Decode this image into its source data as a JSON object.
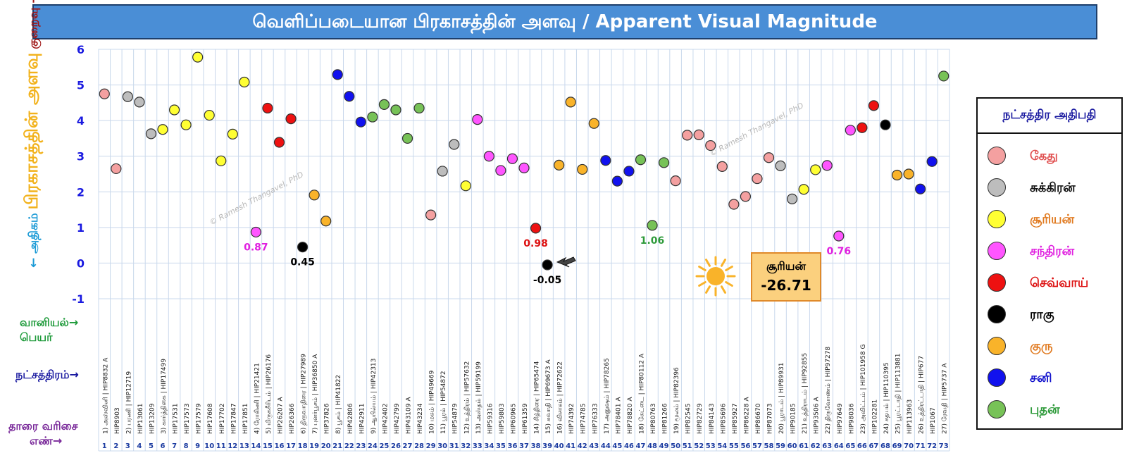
{
  "title": "வெளிப்படையான பிரகாசத்தின் அளவு / Apparent Visual Magnitude",
  "yaxis_parts": {
    "main": "பிரகாசத்தின் அளவு",
    "less": "குறைவு →",
    "more": "← அதிகம்"
  },
  "left_labels": {
    "astro_name": "வானியல்→",
    "astro_name2": "பெயர்",
    "nakshatra": "நட்சத்திரம்→",
    "order": "தாரை வரிசை",
    "order2": "எண்→"
  },
  "legend": {
    "title": "நட்சத்திர அதிபதி",
    "items": [
      {
        "name": "கேது",
        "color": "#f4a0a0",
        "text_color": "#e05050"
      },
      {
        "name": "சுக்கிரன்",
        "color": "#bdbdbd",
        "text_color": "#111111"
      },
      {
        "name": "சூரியன்",
        "color": "#ffff33",
        "text_color": "#e07a20"
      },
      {
        "name": "சந்திரன்",
        "color": "#ff55ff",
        "text_color": "#e020e0"
      },
      {
        "name": "செவ்வாய்",
        "color": "#ee1111",
        "text_color": "#dd1111"
      },
      {
        "name": "ராகு",
        "color": "#000000",
        "text_color": "#000000"
      },
      {
        "name": "குரு",
        "color": "#f9b32a",
        "text_color": "#e07a20"
      },
      {
        "name": "சனி",
        "color": "#1111ee",
        "text_color": "#1111cc"
      },
      {
        "name": "புதன்",
        "color": "#77c257",
        "text_color": "#2e9a3a"
      }
    ]
  },
  "sun_box": {
    "name": "சூரியன்",
    "value": "-26.71",
    "sun_color": "#f9b32a"
  },
  "watermark": "© Ramesh Thangavel, PhD",
  "chart_data": {
    "type": "scatter",
    "ylim": [
      -1,
      6
    ],
    "yticks": [
      "6",
      "5",
      "4",
      "3",
      "2",
      "1",
      "0",
      "-1"
    ],
    "grid": true,
    "x": [
      "1",
      "2",
      "3",
      "4",
      "5",
      "6",
      "7",
      "8",
      "9",
      "10",
      "11",
      "12",
      "13",
      "14",
      "15",
      "16",
      "17",
      "18",
      "19",
      "20",
      "21",
      "22",
      "23",
      "24",
      "25",
      "26",
      "27",
      "28",
      "29",
      "30",
      "31",
      "32",
      "33",
      "34",
      "35",
      "36",
      "37",
      "38",
      "39",
      "40",
      "41",
      "42",
      "43",
      "44",
      "45",
      "46",
      "47",
      "48",
      "49",
      "50",
      "51",
      "52",
      "53",
      "54",
      "55",
      "56",
      "57",
      "58",
      "59",
      "60",
      "61",
      "62",
      "63",
      "64",
      "65",
      "66",
      "67",
      "68",
      "69",
      "70",
      "71",
      "72",
      "73"
    ],
    "values": [
      4.75,
      2.65,
      4.67,
      4.52,
      3.63,
      3.75,
      4.3,
      3.88,
      5.78,
      4.15,
      2.87,
      3.62,
      5.08,
      0.87,
      4.35,
      3.39,
      4.05,
      0.45,
      1.91,
      1.18,
      5.29,
      4.68,
      3.96,
      4.1,
      4.45,
      4.3,
      3.5,
      4.35,
      1.35,
      2.58,
      3.33,
      2.17,
      4.03,
      3.0,
      2.6,
      2.93,
      2.67,
      0.98,
      -0.05,
      2.75,
      4.52,
      2.63,
      3.92,
      2.88,
      2.3,
      2.58,
      2.9,
      1.06,
      2.82,
      2.31,
      3.59,
      3.6,
      3.3,
      2.71,
      1.65,
      1.87,
      2.37,
      2.96,
      2.73,
      1.8,
      2.07,
      2.62,
      2.74,
      0.76,
      3.73,
      3.8,
      4.42,
      3.88,
      2.47,
      2.5,
      2.08,
      2.85,
      5.25
    ],
    "lords": [
      "கேது",
      "கேது",
      "சுக்கிரன்",
      "சுக்கிரன்",
      "சுக்கிரன்",
      "சூரியன்",
      "சூரியன்",
      "சூரியன்",
      "சூரியன்",
      "சூரியன்",
      "சூரியன்",
      "சூரியன்",
      "சூரியன்",
      "சந்திரன்",
      "செவ்வாய்",
      "செவ்வாய்",
      "செவ்வாய்",
      "ராகு",
      "குரு",
      "குரு",
      "சனி",
      "சனி",
      "சனி",
      "புதன்",
      "புதன்",
      "புதன்",
      "புதன்",
      "புதன்",
      "கேது",
      "சுக்கிரன்",
      "சுக்கிரன்",
      "சூரியன்",
      "சந்திரன்",
      "சந்திரன்",
      "சந்திரன்",
      "சந்திரன்",
      "சந்திரன்",
      "செவ்வாய்",
      "ராகு",
      "குரு",
      "குரு",
      "குரு",
      "குரு",
      "சனி",
      "சனி",
      "சனி",
      "புதன்",
      "புதன்",
      "புதன்",
      "கேது",
      "கேது",
      "கேது",
      "கேது",
      "கேது",
      "கேது",
      "கேது",
      "கேது",
      "கேது",
      "சுக்கிரன்",
      "சுக்கிரன்",
      "சூரியன்",
      "சூரியன்",
      "சந்திரன்",
      "சந்திரன்",
      "சந்திரன்",
      "செவ்வாய்",
      "செவ்வாய்",
      "ராகு",
      "குரு",
      "குரு",
      "சனி",
      "சனி",
      "புதன்"
    ],
    "hip": [
      "1) அஸ்வினி | HIP8832 A",
      "HIP8903",
      "2) பரணி | HIP12719",
      "HIP13061",
      "HIP13209",
      "3) கார்த்திகை | HIP17499",
      "HIP17531",
      "HIP17573",
      "HIP17579",
      "HIP17608",
      "HIP17702",
      "HIP17847",
      "HIP17851",
      "4) ரோகிணி | HIP21421",
      "5) மிருகசீரிடம் | HIP26176",
      "HIP26207 A",
      "HIP26366",
      "6) திருவாதிரை | HIP27989",
      "7) புனர்பூசம் | HIP36850 A",
      "HIP37826",
      "8) பூசம் | HIP41822",
      "HIP42806",
      "HIP42911",
      "9) ஆயில்யம் | HIP42313",
      "HIP42402",
      "HIP42799",
      "HIP43109 A",
      "HIP43234",
      "10) மகம் | HIP49669",
      "11) பூரம் | HIP54872",
      "HIP54879",
      "12) உத்திரம் | HIP57632",
      "13) அஸ்தம் | HIP59199",
      "HIP59316",
      "HIP59803",
      "HIP60965",
      "HIP61359",
      "14) சித்திரை | HIP65474",
      "15) சுவாதி | HIP69673 A",
      "16) விசாகம் | HIP72622",
      "HIP74392",
      "HIP74785",
      "HIP76333",
      "17) அனுஷம் | HIP78265",
      "HIP78401 A",
      "HIP78820 A",
      "18) கேட்டை | HIP80112 A",
      "HIP80763",
      "HIP81266",
      "19) மூலம் | HIP82396",
      "HIP82545",
      "HIP82729",
      "HIP84143",
      "HIP85696",
      "HIP85927",
      "HIP86228 A",
      "HIP86670",
      "HIP87073",
      "20) பூராடம் | HIP89931",
      "HIP90185",
      "21) உத்திராடம் | HIP92855",
      "HIP93506 A",
      "22) திருவோணம் | HIP97278",
      "HIP97649",
      "HIP98036",
      "23) அவிட்டம் | HIP101958 G",
      "HIP102281",
      "24) சதயம் | HIP110395",
      "25) பூரட்டாதி | HIP113881",
      "HIP113963",
      "26) உத்திரட்டாதி | HIP677",
      "HIP1067",
      "27) ரேவதி | HIP5737 A"
    ],
    "annotations": [
      {
        "index": 14,
        "text": "0.87",
        "color": "#e020e0"
      },
      {
        "index": 18,
        "text": "0.45",
        "color": "#000000"
      },
      {
        "index": 38,
        "text": "0.98",
        "color": "#dd1111"
      },
      {
        "index": 39,
        "text": "-0.05",
        "color": "#000000"
      },
      {
        "index": 48,
        "text": "1.06",
        "color": "#2e9a3a"
      },
      {
        "index": 64,
        "text": "0.76",
        "color": "#e020e0"
      }
    ]
  }
}
